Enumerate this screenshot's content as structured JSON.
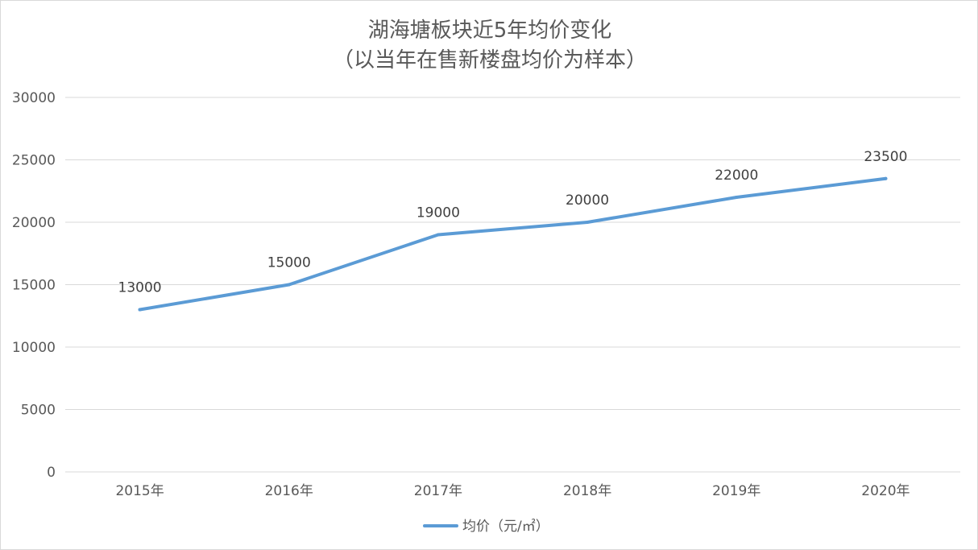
{
  "chart_data": {
    "type": "line",
    "title": [
      "湖海塘板块近5年均价变化",
      "（以当年在售新楼盘均价为样本）"
    ],
    "categories": [
      "2015年",
      "2016年",
      "2017年",
      "2018年",
      "2019年",
      "2020年"
    ],
    "series": [
      {
        "name": "均价（元/㎡）",
        "values": [
          13000,
          15000,
          19000,
          20000,
          22000,
          23500
        ],
        "color": "#5b9bd5"
      }
    ],
    "ylim": [
      0,
      30000
    ],
    "yticks": [
      0,
      5000,
      10000,
      15000,
      20000,
      25000,
      30000
    ],
    "grid": true,
    "data_labels": true,
    "legend_position": "bottom",
    "gridline_color": "#d9d9d9"
  }
}
